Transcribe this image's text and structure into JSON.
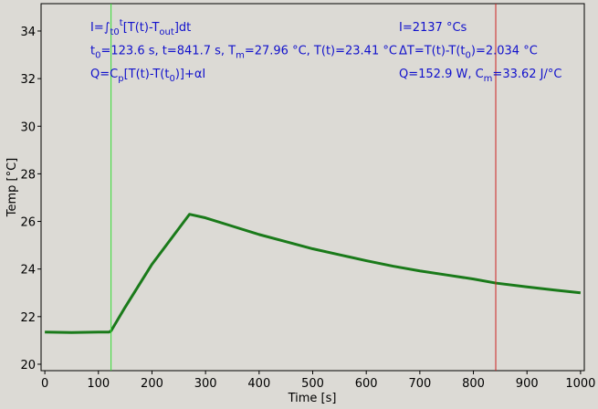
{
  "chart_data": {
    "type": "line",
    "xlabel": "Time [s]",
    "ylabel": "Temp [°C]",
    "xlim": [
      -7,
      1007
    ],
    "ylim": [
      19.73,
      35.15
    ],
    "xticks": [
      0,
      100,
      200,
      300,
      400,
      500,
      600,
      700,
      800,
      900,
      1000
    ],
    "yticks": [
      20,
      22,
      24,
      26,
      28,
      30,
      32,
      34
    ],
    "series": [
      {
        "color": "#1a7a1a",
        "x": [
          0,
          50,
          100,
          120,
          123.6,
          150,
          200,
          250,
          270,
          300,
          350,
          400,
          450,
          500,
          550,
          600,
          650,
          700,
          750,
          800,
          841.7,
          900,
          950,
          1000
        ],
        "y": [
          21.35,
          21.33,
          21.35,
          21.35,
          21.4,
          22.4,
          24.2,
          25.7,
          26.3,
          26.15,
          25.8,
          25.45,
          25.15,
          24.85,
          24.6,
          24.35,
          24.12,
          23.92,
          23.75,
          23.58,
          23.41,
          23.25,
          23.12,
          23.0
        ]
      }
    ],
    "cursors": [
      {
        "x": 123.6,
        "color": "#33dd33"
      },
      {
        "x": 841.7,
        "color": "#cc2222"
      }
    ],
    "annotations_left": [
      [
        {
          "text": "I=∫"
        },
        {
          "text": "t0",
          "shift": "sub"
        },
        {
          "text": "t",
          "shift": "sup"
        },
        {
          "text": "[T(t)-T"
        },
        {
          "text": "out",
          "shift": "sub"
        },
        {
          "text": "]dt"
        }
      ],
      [
        {
          "text": "t"
        },
        {
          "text": "0",
          "shift": "sub"
        },
        {
          "text": "=123.6 s,   t=841.7 s,   T"
        },
        {
          "text": "m",
          "shift": "sub"
        },
        {
          "text": "=27.96 °C,  T(t)=23.41 °C"
        }
      ],
      [
        {
          "text": "Q=C"
        },
        {
          "text": "p",
          "shift": "sub"
        },
        {
          "text": "[T(t)-T(t"
        },
        {
          "text": "0",
          "shift": "sub"
        },
        {
          "text": ")]+αI"
        }
      ]
    ],
    "annotations_right": [
      [
        {
          "text": "I=2137 °Cs"
        }
      ],
      [
        {
          "text": "ΔT=T(t)-T(t"
        },
        {
          "text": "0",
          "shift": "sub"
        },
        {
          "text": ")=2.034 °C"
        }
      ],
      [
        {
          "text": "Q=152.9 W,   C"
        },
        {
          "text": "m",
          "shift": "sub"
        },
        {
          "text": "=33.62 J/°C"
        }
      ]
    ]
  }
}
